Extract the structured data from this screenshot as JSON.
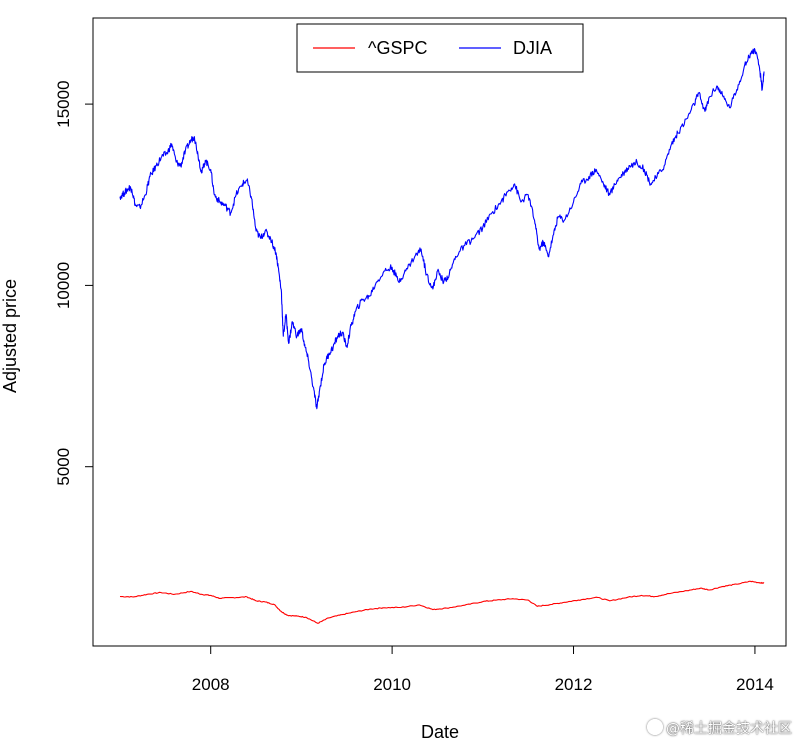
{
  "chart_data": {
    "type": "line",
    "title": "",
    "xlabel": "Date",
    "ylabel": "Adjusted price",
    "xlim": [
      2007.0,
      2014.1
    ],
    "ylim": [
      0,
      17000
    ],
    "x_ticks": [
      2008,
      2010,
      2012,
      2014
    ],
    "x_tick_labels": [
      "2008",
      "2010",
      "2012",
      "2014"
    ],
    "y_ticks": [
      5000,
      10000,
      15000
    ],
    "y_tick_labels": [
      "5000",
      "10000",
      "15000"
    ],
    "legend": {
      "placement": "top-center",
      "entries": [
        "^GSPC",
        "DJIA"
      ]
    },
    "series": [
      {
        "name": "^GSPC",
        "color": "#ff0000",
        "points": [
          [
            2007.0,
            1420
          ],
          [
            2007.15,
            1410
          ],
          [
            2007.3,
            1480
          ],
          [
            2007.45,
            1530
          ],
          [
            2007.6,
            1480
          ],
          [
            2007.78,
            1560
          ],
          [
            2007.9,
            1480
          ],
          [
            2008.0,
            1450
          ],
          [
            2008.1,
            1370
          ],
          [
            2008.25,
            1390
          ],
          [
            2008.4,
            1410
          ],
          [
            2008.5,
            1300
          ],
          [
            2008.6,
            1270
          ],
          [
            2008.7,
            1200
          ],
          [
            2008.78,
            1000
          ],
          [
            2008.85,
            900
          ],
          [
            2008.95,
            880
          ],
          [
            2009.05,
            850
          ],
          [
            2009.18,
            680
          ],
          [
            2009.3,
            830
          ],
          [
            2009.45,
            920
          ],
          [
            2009.6,
            1000
          ],
          [
            2009.75,
            1070
          ],
          [
            2009.9,
            1110
          ],
          [
            2010.1,
            1120
          ],
          [
            2010.3,
            1190
          ],
          [
            2010.45,
            1060
          ],
          [
            2010.6,
            1100
          ],
          [
            2010.8,
            1180
          ],
          [
            2011.0,
            1280
          ],
          [
            2011.15,
            1320
          ],
          [
            2011.33,
            1360
          ],
          [
            2011.5,
            1320
          ],
          [
            2011.6,
            1150
          ],
          [
            2011.75,
            1200
          ],
          [
            2011.9,
            1260
          ],
          [
            2012.05,
            1320
          ],
          [
            2012.25,
            1400
          ],
          [
            2012.4,
            1300
          ],
          [
            2012.6,
            1400
          ],
          [
            2012.75,
            1450
          ],
          [
            2012.9,
            1420
          ],
          [
            2013.05,
            1500
          ],
          [
            2013.25,
            1580
          ],
          [
            2013.4,
            1650
          ],
          [
            2013.5,
            1600
          ],
          [
            2013.65,
            1700
          ],
          [
            2013.8,
            1760
          ],
          [
            2013.95,
            1840
          ],
          [
            2014.05,
            1800
          ],
          [
            2014.1,
            1790
          ]
        ]
      },
      {
        "name": "DJIA",
        "color": "#0000ff",
        "points": [
          [
            2007.0,
            12450
          ],
          [
            2007.05,
            12550
          ],
          [
            2007.1,
            12700
          ],
          [
            2007.13,
            12650
          ],
          [
            2007.17,
            12200
          ],
          [
            2007.22,
            12150
          ],
          [
            2007.28,
            12500
          ],
          [
            2007.33,
            13000
          ],
          [
            2007.4,
            13300
          ],
          [
            2007.46,
            13550
          ],
          [
            2007.52,
            13650
          ],
          [
            2007.57,
            13900
          ],
          [
            2007.62,
            13400
          ],
          [
            2007.67,
            13300
          ],
          [
            2007.72,
            13700
          ],
          [
            2007.78,
            14000
          ],
          [
            2007.82,
            14100
          ],
          [
            2007.86,
            13600
          ],
          [
            2007.9,
            13100
          ],
          [
            2007.94,
            13450
          ],
          [
            2008.0,
            13200
          ],
          [
            2008.04,
            12500
          ],
          [
            2008.1,
            12300
          ],
          [
            2008.16,
            12200
          ],
          [
            2008.22,
            12000
          ],
          [
            2008.28,
            12500
          ],
          [
            2008.35,
            12800
          ],
          [
            2008.4,
            12900
          ],
          [
            2008.45,
            12400
          ],
          [
            2008.5,
            11500
          ],
          [
            2008.55,
            11300
          ],
          [
            2008.6,
            11500
          ],
          [
            2008.66,
            11300
          ],
          [
            2008.72,
            10900
          ],
          [
            2008.75,
            10400
          ],
          [
            2008.78,
            9800
          ],
          [
            2008.8,
            8600
          ],
          [
            2008.83,
            9200
          ],
          [
            2008.86,
            8400
          ],
          [
            2008.9,
            9000
          ],
          [
            2008.95,
            8600
          ],
          [
            2009.0,
            8800
          ],
          [
            2009.04,
            8300
          ],
          [
            2009.08,
            7900
          ],
          [
            2009.13,
            7200
          ],
          [
            2009.17,
            6600
          ],
          [
            2009.2,
            7100
          ],
          [
            2009.25,
            7800
          ],
          [
            2009.3,
            8100
          ],
          [
            2009.35,
            8300
          ],
          [
            2009.4,
            8600
          ],
          [
            2009.45,
            8700
          ],
          [
            2009.5,
            8300
          ],
          [
            2009.55,
            8900
          ],
          [
            2009.6,
            9300
          ],
          [
            2009.67,
            9600
          ],
          [
            2009.75,
            9700
          ],
          [
            2009.83,
            10100
          ],
          [
            2009.92,
            10400
          ],
          [
            2010.0,
            10500
          ],
          [
            2010.07,
            10100
          ],
          [
            2010.15,
            10400
          ],
          [
            2010.25,
            10800
          ],
          [
            2010.32,
            11000
          ],
          [
            2010.38,
            10300
          ],
          [
            2010.45,
            9900
          ],
          [
            2010.5,
            10400
          ],
          [
            2010.57,
            10100
          ],
          [
            2010.63,
            10300
          ],
          [
            2010.7,
            10800
          ],
          [
            2010.8,
            11100
          ],
          [
            2010.9,
            11300
          ],
          [
            2011.0,
            11600
          ],
          [
            2011.1,
            12000
          ],
          [
            2011.2,
            12300
          ],
          [
            2011.28,
            12600
          ],
          [
            2011.35,
            12800
          ],
          [
            2011.42,
            12300
          ],
          [
            2011.5,
            12500
          ],
          [
            2011.57,
            11800
          ],
          [
            2011.62,
            11000
          ],
          [
            2011.67,
            11200
          ],
          [
            2011.72,
            10800
          ],
          [
            2011.78,
            11400
          ],
          [
            2011.83,
            11900
          ],
          [
            2011.9,
            11800
          ],
          [
            2012.0,
            12300
          ],
          [
            2012.08,
            12800
          ],
          [
            2012.17,
            13000
          ],
          [
            2012.25,
            13200
          ],
          [
            2012.33,
            12800
          ],
          [
            2012.4,
            12500
          ],
          [
            2012.48,
            12900
          ],
          [
            2012.55,
            13100
          ],
          [
            2012.62,
            13300
          ],
          [
            2012.7,
            13400
          ],
          [
            2012.78,
            13200
          ],
          [
            2012.85,
            12800
          ],
          [
            2012.92,
            13000
          ],
          [
            2013.0,
            13300
          ],
          [
            2013.08,
            13900
          ],
          [
            2013.15,
            14200
          ],
          [
            2013.25,
            14600
          ],
          [
            2013.33,
            15000
          ],
          [
            2013.38,
            15300
          ],
          [
            2013.45,
            14800
          ],
          [
            2013.5,
            15200
          ],
          [
            2013.58,
            15500
          ],
          [
            2013.65,
            15200
          ],
          [
            2013.72,
            14900
          ],
          [
            2013.8,
            15400
          ],
          [
            2013.88,
            16000
          ],
          [
            2013.95,
            16400
          ],
          [
            2014.0,
            16500
          ],
          [
            2014.05,
            16000
          ],
          [
            2014.08,
            15400
          ],
          [
            2014.1,
            15900
          ]
        ]
      }
    ]
  },
  "watermark": {
    "text": "@稀土掘金技术社区"
  }
}
